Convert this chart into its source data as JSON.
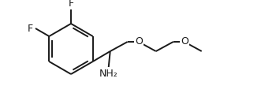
{
  "background": "#ffffff",
  "bond_color": "#1a1a1a",
  "atom_label_color": "#1a1a1a",
  "figure_width": 3.5,
  "figure_height": 1.23,
  "dpi": 100,
  "F1_label": "F",
  "F2_label": "F",
  "NH2_label": "NH₂",
  "O1_label": "O",
  "O2_label": "O"
}
